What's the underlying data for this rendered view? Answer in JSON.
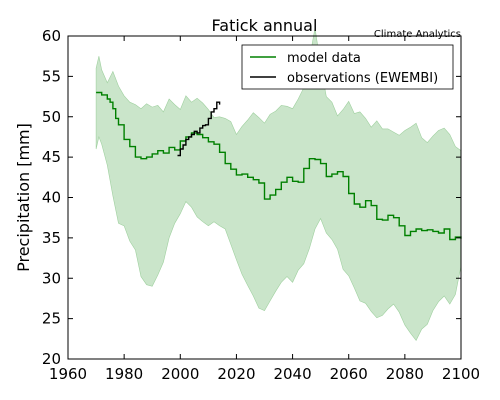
{
  "chart_data": {
    "type": "line",
    "title": "Fatick annual",
    "credit": "Climate Analytics",
    "xlabel": "",
    "ylabel": "Precipitation [mm]",
    "xlim": [
      1960,
      2100
    ],
    "ylim": [
      20,
      60
    ],
    "x_ticks": [
      "1960",
      "1980",
      "2000",
      "2020",
      "2040",
      "2060",
      "2080",
      "2100"
    ],
    "y_ticks": [
      "20",
      "25",
      "30",
      "35",
      "40",
      "45",
      "50",
      "55",
      "60"
    ],
    "grid": false,
    "legend_position": "top-right",
    "series": [
      {
        "name": "model data",
        "color": "#008000",
        "style": "step",
        "x": [
          1970,
          1972,
          1974,
          1975,
          1976,
          1977,
          1978,
          1980,
          1982,
          1984,
          1986,
          1988,
          1990,
          1992,
          1994,
          1996,
          1998,
          2000,
          2002,
          2004,
          2006,
          2008,
          2010,
          2012,
          2014,
          2016,
          2018,
          2020,
          2022,
          2024,
          2026,
          2028,
          2030,
          2032,
          2034,
          2036,
          2038,
          2040,
          2042,
          2044,
          2046,
          2048,
          2050,
          2052,
          2054,
          2056,
          2058,
          2060,
          2062,
          2064,
          2066,
          2068,
          2070,
          2072,
          2074,
          2076,
          2078,
          2080,
          2082,
          2084,
          2086,
          2088,
          2090,
          2092,
          2094,
          2096,
          2098,
          2100
        ],
        "values": [
          53.0,
          52.7,
          52.2,
          51.8,
          51.0,
          49.8,
          49.0,
          47.2,
          46.3,
          45.0,
          44.8,
          45.0,
          45.4,
          45.8,
          45.5,
          46.2,
          45.9,
          47.0,
          47.5,
          48.0,
          47.8,
          47.4,
          46.9,
          46.6,
          45.6,
          44.2,
          43.5,
          42.8,
          42.9,
          42.5,
          42.2,
          41.8,
          39.8,
          40.3,
          41.0,
          41.9,
          42.5,
          42.0,
          41.9,
          43.6,
          44.8,
          44.7,
          44.2,
          42.6,
          42.9,
          43.2,
          42.6,
          40.5,
          39.2,
          38.8,
          39.6,
          39.0,
          37.3,
          37.2,
          37.8,
          37.5,
          36.5,
          35.3,
          35.8,
          36.1,
          35.9,
          36.0,
          35.8,
          35.6,
          36.1,
          34.8,
          35.1,
          34.9
        ]
      },
      {
        "name": "observations (EWEMBI)",
        "color": "#000000",
        "style": "step",
        "x": [
          1999,
          2000,
          2001,
          2002,
          2003,
          2004,
          2005,
          2006,
          2007,
          2008,
          2009,
          2010,
          2011,
          2012,
          2013,
          2014
        ],
        "values": [
          45.2,
          46.0,
          46.5,
          47.2,
          47.5,
          47.8,
          48.2,
          48.0,
          48.6,
          48.9,
          49.0,
          49.8,
          50.6,
          51.0,
          51.8,
          51.5
        ]
      }
    ],
    "band": {
      "color": "#9fd09f",
      "x": [
        1970,
        1971,
        1972,
        1974,
        1976,
        1978,
        1980,
        1982,
        1984,
        1986,
        1988,
        1990,
        1992,
        1994,
        1996,
        1998,
        2000,
        2002,
        2004,
        2006,
        2008,
        2010,
        2012,
        2014,
        2016,
        2018,
        2020,
        2022,
        2024,
        2026,
        2028,
        2030,
        2032,
        2034,
        2036,
        2038,
        2040,
        2042,
        2044,
        2046,
        2048,
        2050,
        2052,
        2054,
        2056,
        2058,
        2060,
        2062,
        2064,
        2066,
        2068,
        2070,
        2072,
        2074,
        2076,
        2078,
        2080,
        2082,
        2084,
        2086,
        2088,
        2090,
        2092,
        2094,
        2096,
        2098,
        2100
      ],
      "upper": [
        56.0,
        57.5,
        55.8,
        54.2,
        55.6,
        53.8,
        52.6,
        51.8,
        51.5,
        51.0,
        51.6,
        51.2,
        51.4,
        50.6,
        52.2,
        51.5,
        50.9,
        52.6,
        51.8,
        52.3,
        51.7,
        50.9,
        49.9,
        50.0,
        49.8,
        49.4,
        47.8,
        48.8,
        49.6,
        50.5,
        49.9,
        49.2,
        50.3,
        50.7,
        51.4,
        51.3,
        51.0,
        52.2,
        53.6,
        57.1,
        61.0,
        56.4,
        52.5,
        51.8,
        50.1,
        50.9,
        51.9,
        50.4,
        50.6,
        49.8,
        48.7,
        49.5,
        48.5,
        48.5,
        48.1,
        47.7,
        48.3,
        48.7,
        49.2,
        47.4,
        46.8,
        47.6,
        48.3,
        48.6,
        47.8,
        46.3,
        45.8
      ],
      "lower": [
        46.0,
        47.5,
        46.6,
        44.0,
        40.2,
        36.8,
        36.5,
        34.6,
        33.5,
        30.2,
        29.2,
        29.0,
        30.4,
        32.0,
        35.0,
        36.8,
        38.0,
        39.5,
        38.8,
        37.6,
        37.0,
        36.5,
        37.0,
        36.5,
        36.1,
        34.2,
        32.3,
        30.5,
        29.1,
        27.8,
        26.3,
        26.0,
        27.2,
        28.4,
        29.5,
        30.2,
        29.5,
        31.0,
        31.8,
        33.7,
        36.1,
        37.4,
        35.6,
        34.8,
        33.6,
        31.1,
        30.3,
        28.8,
        27.2,
        26.9,
        25.9,
        25.1,
        25.4,
        26.2,
        26.8,
        25.8,
        24.2,
        23.2,
        22.3,
        23.7,
        24.3,
        26.0,
        27.1,
        27.8,
        26.8,
        28.0,
        31.5
      ]
    }
  }
}
